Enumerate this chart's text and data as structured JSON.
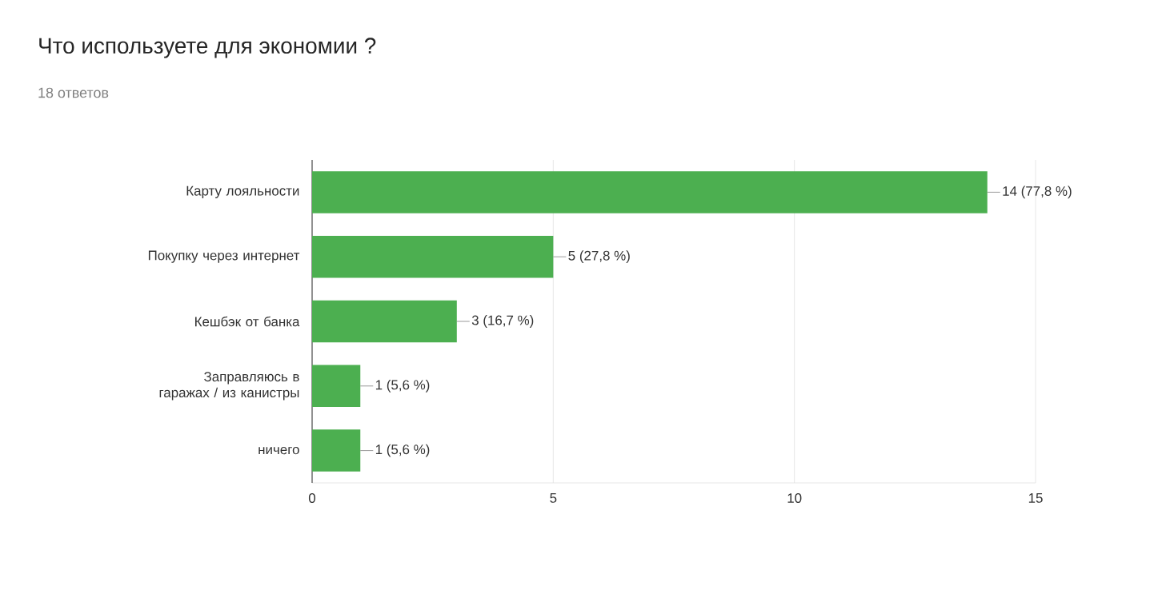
{
  "chart_data": {
    "type": "bar",
    "orientation": "horizontal",
    "title": "Что используете для экономии ?",
    "subtitle": "18 ответов",
    "categories": [
      "Карту лояльности",
      "Покупку через интернет",
      "Кешбэк от банка",
      "Заправляюсь в гаражах / из канистры",
      "ничего"
    ],
    "values": [
      14,
      5,
      3,
      1,
      1
    ],
    "value_labels": [
      "14 (77,8 %)",
      "5 (27,8 %)",
      "3 (16,7 %)",
      "1 (5,6 %)",
      "1 (5,6 %)"
    ],
    "color": "#4caf50",
    "xlim": [
      0,
      15
    ],
    "xticks": [
      0,
      5,
      10,
      15
    ],
    "grid": "x"
  }
}
